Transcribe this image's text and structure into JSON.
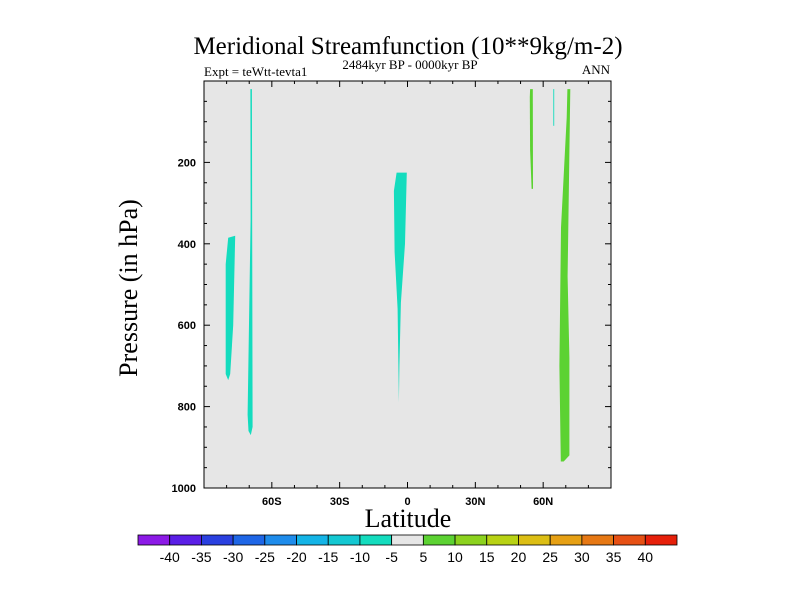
{
  "chart_data": {
    "type": "contour",
    "title": "Meridional Streamfunction (10**9kg/m-2)",
    "subtitle_left": "Expt = teWtt-tevta1",
    "subtitle_center": "2484kyr BP - 0000kyr BP",
    "subtitle_right": "ANN",
    "xlabel": "Latitude",
    "ylabel": "Pressure (in hPa)",
    "xlim": [
      -90,
      90
    ],
    "ylim": [
      1000,
      0
    ],
    "plot_background": "#e6e6e6",
    "x_ticks": [
      {
        "value": -60,
        "label": "60S"
      },
      {
        "value": -30,
        "label": "30S"
      },
      {
        "value": 0,
        "label": "0"
      },
      {
        "value": 30,
        "label": "30N"
      },
      {
        "value": 60,
        "label": "60N"
      }
    ],
    "y_ticks": [
      {
        "value": 200,
        "label": "200"
      },
      {
        "value": 400,
        "label": "400"
      },
      {
        "value": 600,
        "label": "600"
      },
      {
        "value": 800,
        "label": "800"
      },
      {
        "value": 1000,
        "label": "1000"
      }
    ],
    "contour_regions": [
      {
        "name": "neg-southern-a",
        "level": "-10 to -5",
        "color": "#14dcbe",
        "points": [
          [
            -79.3,
            385
          ],
          [
            -76.2,
            380
          ],
          [
            -77.1,
            600
          ],
          [
            -78.4,
            720
          ],
          [
            -79.3,
            735
          ],
          [
            -80.4,
            720
          ],
          [
            -80.4,
            450
          ]
        ]
      },
      {
        "name": "neg-southern-b",
        "level": "-10 to -5",
        "color": "#14dcbe",
        "points": [
          [
            -69.5,
            20
          ],
          [
            -68.8,
            20
          ],
          [
            -68.5,
            850
          ],
          [
            -69.3,
            870
          ],
          [
            -70.3,
            860
          ],
          [
            -70.7,
            820
          ],
          [
            -69.4,
            340
          ]
        ]
      },
      {
        "name": "neg-equatorial",
        "level": "-10 to -5",
        "color": "#14dcbe",
        "points": [
          [
            -4.8,
            225
          ],
          [
            -0.3,
            225
          ],
          [
            -1.1,
            400
          ],
          [
            -2.9,
            545
          ],
          [
            -3.6,
            700
          ],
          [
            -3.8,
            790
          ],
          [
            -4.4,
            560
          ],
          [
            -5.7,
            420
          ],
          [
            -6.0,
            270
          ]
        ]
      },
      {
        "name": "pos-northern-a",
        "level": "5 to 10",
        "color": "#5cd232",
        "points": [
          [
            54.2,
            20
          ],
          [
            55.4,
            20
          ],
          [
            55.5,
            265
          ],
          [
            54.9,
            265
          ],
          [
            54.2,
            170
          ],
          [
            54.1,
            40
          ]
        ]
      },
      {
        "name": "pos-northern-b",
        "level": "5 to 10",
        "color": "#5cd232",
        "points": [
          [
            70.7,
            20
          ],
          [
            72.0,
            20
          ],
          [
            70.8,
            480
          ],
          [
            71.6,
            680
          ],
          [
            71.6,
            920
          ],
          [
            69.1,
            935
          ],
          [
            67.8,
            935
          ],
          [
            67.2,
            700
          ],
          [
            67.9,
            360
          ],
          [
            70.4,
            90
          ]
        ]
      },
      {
        "name": "neg-northern-thin",
        "level": "-10 to -5",
        "color": "#14dcbe",
        "points": [
          [
            64.5,
            20
          ],
          [
            64.9,
            20
          ],
          [
            64.9,
            110
          ],
          [
            64.5,
            110
          ]
        ]
      }
    ],
    "colorbar": {
      "labels": [
        "-40",
        "-35",
        "-30",
        "-25",
        "-20",
        "-15",
        "-10",
        "-5",
        "5",
        "10",
        "15",
        "20",
        "25",
        "30",
        "35",
        "40"
      ],
      "colors": [
        "#8c1ae6",
        "#5a1ee6",
        "#2a40e0",
        "#1e66e6",
        "#1e8ceb",
        "#14b4e6",
        "#14c8d2",
        "#14dcbe",
        "#e6e6e6",
        "#5cd232",
        "#8cd21e",
        "#b8d214",
        "#dcbe14",
        "#e6a014",
        "#e67814",
        "#e65014",
        "#e6200a"
      ]
    }
  }
}
